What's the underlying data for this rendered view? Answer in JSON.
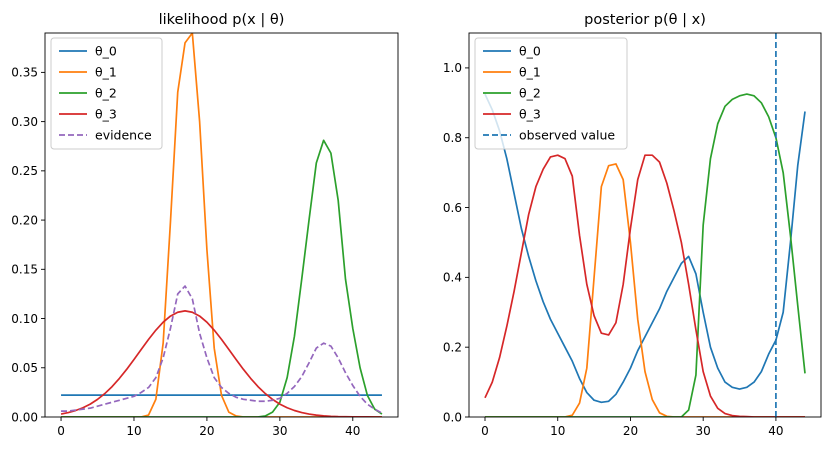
{
  "chart_data": [
    {
      "type": "line",
      "title": "likelihood p(x | θ)",
      "xlabel": "",
      "ylabel": "",
      "xlim": [
        -2.2,
        46.2
      ],
      "ylim": [
        0,
        0.39
      ],
      "xticks": [
        0,
        10,
        20,
        30,
        40
      ],
      "yticks": [
        0.0,
        0.05,
        0.1,
        0.15,
        0.2,
        0.25,
        0.3,
        0.35
      ],
      "ytick_labels": [
        "0.00",
        "0.05",
        "0.10",
        "0.15",
        "0.20",
        "0.25",
        "0.30",
        "0.35"
      ],
      "grid": false,
      "legend_position": "top-left",
      "x": [
        0,
        1,
        2,
        3,
        4,
        5,
        6,
        7,
        8,
        9,
        10,
        11,
        12,
        13,
        14,
        15,
        16,
        17,
        18,
        19,
        20,
        21,
        22,
        23,
        24,
        25,
        26,
        27,
        28,
        29,
        30,
        31,
        32,
        33,
        34,
        35,
        36,
        37,
        38,
        39,
        40,
        41,
        42,
        43,
        44
      ],
      "series": [
        {
          "name": "θ_0",
          "color": "#1f77b4",
          "dash": "solid",
          "values": [
            0.0222,
            0.0222,
            0.0222,
            0.0222,
            0.0222,
            0.0222,
            0.0222,
            0.0222,
            0.0222,
            0.0222,
            0.0222,
            0.0222,
            0.0222,
            0.0222,
            0.0222,
            0.0222,
            0.0222,
            0.0222,
            0.0222,
            0.0222,
            0.0222,
            0.0222,
            0.0222,
            0.0222,
            0.0222,
            0.0222,
            0.0222,
            0.0222,
            0.0222,
            0.0222,
            0.0222,
            0.0222,
            0.0222,
            0.0222,
            0.0222,
            0.0222,
            0.0222,
            0.0222,
            0.0222,
            0.0222,
            0.0222,
            0.0222,
            0.0222,
            0.0222,
            0.0222
          ]
        },
        {
          "name": "θ_1",
          "color": "#ff7f0e",
          "dash": "solid",
          "values": [
            0,
            0,
            0,
            0,
            0,
            0,
            0,
            0,
            0,
            0,
            0,
            0,
            0.002,
            0.018,
            0.075,
            0.198,
            0.33,
            0.38,
            0.39,
            0.3,
            0.17,
            0.07,
            0.022,
            0.005,
            0.001,
            0,
            0,
            0,
            0,
            0,
            0,
            0,
            0,
            0,
            0,
            0,
            0,
            0,
            0,
            0,
            0,
            0,
            0,
            0,
            0
          ]
        },
        {
          "name": "θ_2",
          "color": "#2ca02c",
          "dash": "solid",
          "values": [
            0,
            0,
            0,
            0,
            0,
            0,
            0,
            0,
            0,
            0,
            0,
            0,
            0,
            0,
            0,
            0,
            0,
            0,
            0,
            0,
            0,
            0,
            0,
            0,
            0,
            0,
            0,
            0,
            0.001,
            0.005,
            0.015,
            0.04,
            0.082,
            0.14,
            0.2,
            0.258,
            0.281,
            0.268,
            0.22,
            0.14,
            0.09,
            0.05,
            0.022,
            0.008,
            0.003
          ]
        },
        {
          "name": "θ_3",
          "color": "#d62728",
          "dash": "solid",
          "values": [
            0.003,
            0.0045,
            0.0066,
            0.0094,
            0.0131,
            0.0179,
            0.0238,
            0.0309,
            0.0392,
            0.0484,
            0.0584,
            0.0687,
            0.0788,
            0.0882,
            0.0963,
            0.1025,
            0.1064,
            0.1078,
            0.1064,
            0.1025,
            0.0963,
            0.0882,
            0.0788,
            0.0687,
            0.0584,
            0.0484,
            0.0392,
            0.0309,
            0.0238,
            0.0179,
            0.0131,
            0.0094,
            0.0066,
            0.0045,
            0.003,
            0.0019,
            0.0012,
            0.0007,
            0.0004,
            0.0003,
            0.0002,
            0.0001,
            0.0001,
            0,
            0
          ]
        },
        {
          "name": "evidence",
          "color": "#9467bd",
          "dash": "dashed",
          "values": [
            0.006,
            0.006,
            0.007,
            0.008,
            0.009,
            0.011,
            0.013,
            0.015,
            0.017,
            0.019,
            0.021,
            0.025,
            0.03,
            0.04,
            0.06,
            0.09,
            0.125,
            0.133,
            0.12,
            0.085,
            0.06,
            0.04,
            0.03,
            0.024,
            0.02,
            0.018,
            0.017,
            0.016,
            0.016,
            0.017,
            0.019,
            0.024,
            0.031,
            0.041,
            0.055,
            0.07,
            0.075,
            0.072,
            0.06,
            0.045,
            0.032,
            0.021,
            0.013,
            0.008,
            0.004
          ]
        }
      ]
    },
    {
      "type": "line",
      "title": "posterior p(θ  | x)",
      "xlabel": "",
      "ylabel": "",
      "xlim": [
        -2.2,
        46.2
      ],
      "ylim": [
        0,
        1.1
      ],
      "xticks": [
        0,
        10,
        20,
        30,
        40
      ],
      "yticks": [
        0.0,
        0.2,
        0.4,
        0.6,
        0.8,
        1.0
      ],
      "ytick_labels": [
        "0.0",
        "0.2",
        "0.4",
        "0.6",
        "0.8",
        "1.0"
      ],
      "grid": false,
      "legend_position": "top-left",
      "x": [
        0,
        1,
        2,
        3,
        4,
        5,
        6,
        7,
        8,
        9,
        10,
        11,
        12,
        13,
        14,
        15,
        16,
        17,
        18,
        19,
        20,
        21,
        22,
        23,
        24,
        25,
        26,
        27,
        28,
        29,
        30,
        31,
        32,
        33,
        34,
        35,
        36,
        37,
        38,
        39,
        40,
        41,
        42,
        43,
        44
      ],
      "series": [
        {
          "name": "θ_0",
          "color": "#1f77b4",
          "dash": "solid",
          "values": [
            0.925,
            0.88,
            0.82,
            0.74,
            0.64,
            0.54,
            0.46,
            0.39,
            0.33,
            0.28,
            0.24,
            0.2,
            0.16,
            0.11,
            0.07,
            0.048,
            0.042,
            0.045,
            0.065,
            0.1,
            0.14,
            0.19,
            0.23,
            0.27,
            0.31,
            0.36,
            0.4,
            0.44,
            0.46,
            0.41,
            0.3,
            0.2,
            0.14,
            0.1,
            0.085,
            0.08,
            0.085,
            0.1,
            0.13,
            0.18,
            0.22,
            0.3,
            0.5,
            0.72,
            0.875
          ]
        },
        {
          "name": "θ_1",
          "color": "#ff7f0e",
          "dash": "solid",
          "values": [
            0,
            0,
            0,
            0,
            0,
            0,
            0,
            0,
            0,
            0,
            0,
            0,
            0.005,
            0.04,
            0.14,
            0.4,
            0.66,
            0.72,
            0.725,
            0.68,
            0.5,
            0.28,
            0.13,
            0.05,
            0.012,
            0.002,
            0,
            0,
            0,
            0,
            0,
            0,
            0,
            0,
            0,
            0,
            0,
            0,
            0,
            0,
            0,
            0,
            0,
            0,
            0
          ]
        },
        {
          "name": "θ_2",
          "color": "#2ca02c",
          "dash": "solid",
          "values": [
            0,
            0,
            0,
            0,
            0,
            0,
            0,
            0,
            0,
            0,
            0,
            0,
            0,
            0,
            0,
            0,
            0,
            0,
            0,
            0,
            0,
            0,
            0,
            0,
            0,
            0,
            0,
            0,
            0.02,
            0.12,
            0.55,
            0.74,
            0.84,
            0.89,
            0.91,
            0.92,
            0.925,
            0.92,
            0.9,
            0.86,
            0.8,
            0.7,
            0.52,
            0.32,
            0.125
          ]
        },
        {
          "name": "θ_3",
          "color": "#d62728",
          "dash": "solid",
          "values": [
            0.055,
            0.1,
            0.17,
            0.26,
            0.36,
            0.47,
            0.58,
            0.66,
            0.71,
            0.745,
            0.75,
            0.74,
            0.69,
            0.52,
            0.38,
            0.29,
            0.24,
            0.235,
            0.27,
            0.38,
            0.54,
            0.68,
            0.75,
            0.75,
            0.73,
            0.67,
            0.59,
            0.5,
            0.38,
            0.25,
            0.13,
            0.06,
            0.025,
            0.01,
            0.004,
            0.002,
            0.001,
            0,
            0,
            0,
            0,
            0,
            0,
            0,
            0
          ]
        },
        {
          "name": "observed value",
          "color": "#1f77b4",
          "dash": "dashed",
          "type": "vline",
          "x_value": 40
        }
      ]
    }
  ]
}
